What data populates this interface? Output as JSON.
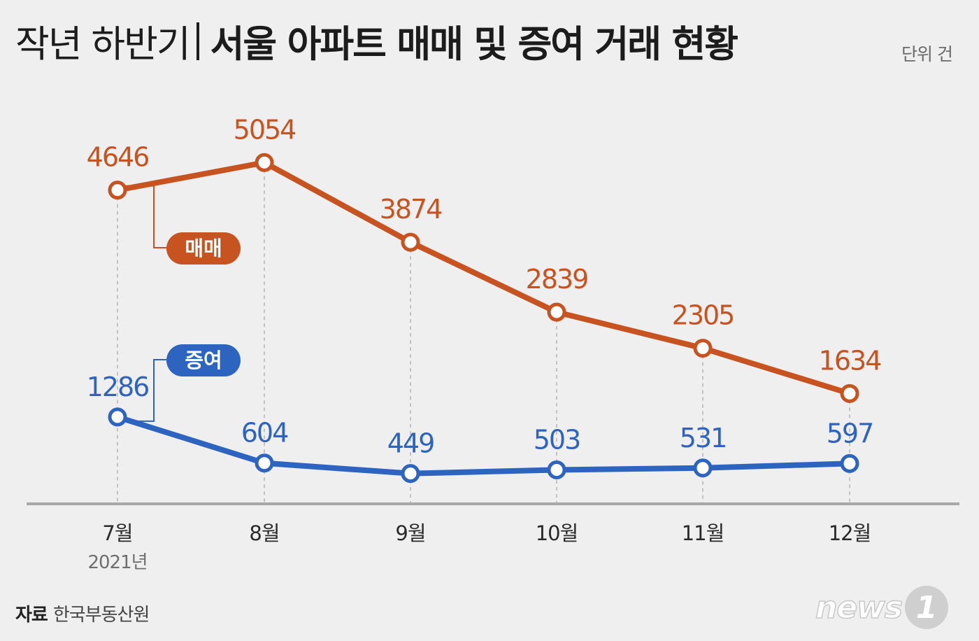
{
  "header": {
    "title_light": "작년 하반기",
    "title_bold": "서울 아파트 매매 및 증여 거래 현황",
    "unit": "단위 건"
  },
  "footer": {
    "source_label": "자료",
    "source_text": "한국부동산원",
    "logo_text": "news",
    "logo_mark": "1"
  },
  "colors": {
    "sale": "#c75420",
    "gift": "#2d64c0",
    "axis": "#a8a8a8",
    "grid": "#b6b6b6",
    "background": "#efefef"
  },
  "chart_data": {
    "type": "line",
    "title": "작년 하반기 서울 아파트 매매 및 증여 거래 현황",
    "unit_label": "단위 건",
    "categories": [
      "7월",
      "8월",
      "9월",
      "10월",
      "11월",
      "12월"
    ],
    "year_label": "2021년",
    "series": [
      {
        "name": "매매",
        "values": [
          4646,
          5054,
          3874,
          2839,
          2305,
          1634
        ]
      },
      {
        "name": "증여",
        "values": [
          1286,
          604,
          449,
          503,
          531,
          597
        ]
      }
    ],
    "ylim": [
      0,
      5500
    ],
    "grid": false,
    "xlabel": "",
    "ylabel": ""
  }
}
